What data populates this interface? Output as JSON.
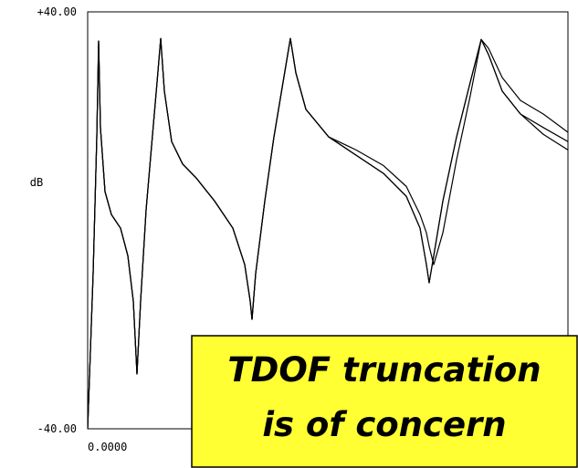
{
  "chart_data": {
    "type": "line",
    "ylabel": "dB",
    "annotation": [
      "TDOF truncation",
      "is of concern"
    ],
    "xlim": [
      0,
      526
    ],
    "xticks": [
      {
        "value": 0,
        "label": "0.0000"
      }
    ],
    "ylim": [
      -40,
      40
    ],
    "yticks": [
      {
        "value": -40,
        "label": "-40.00"
      },
      {
        "value": 40,
        "label": "+40.00"
      }
    ],
    "x": [
      0,
      6,
      10,
      12,
      14,
      19,
      26,
      36,
      44,
      50,
      54,
      58,
      64,
      70,
      76,
      80,
      84,
      92,
      104,
      119,
      139,
      159,
      172,
      178,
      180,
      184,
      194,
      204,
      214,
      222,
      228,
      239,
      264,
      294,
      324,
      349,
      364,
      371,
      374,
      379,
      389,
      404,
      419,
      431,
      439,
      454,
      474,
      499,
      526
    ],
    "series": [
      {
        "color": "#000000",
        "values": [
          -40,
          -10.2,
          16,
          34.4,
          17.8,
          5.5,
          1.1,
          -1.5,
          -6.8,
          -15.5,
          -29.5,
          -15.5,
          2,
          14.3,
          26.5,
          34.9,
          24.8,
          15.1,
          10.8,
          8.1,
          3.7,
          -1.5,
          -8.5,
          -15.5,
          -19,
          -10.2,
          3.7,
          16,
          26.5,
          34.9,
          28.3,
          21.3,
          16,
          12.5,
          9,
          4.6,
          -1.5,
          -8.5,
          -12,
          -6.8,
          3.7,
          16,
          26.5,
          34.7,
          31.8,
          24.8,
          20.4,
          17.8,
          15.1
        ]
      },
      {
        "color": "#000000",
        "values": [
          -40,
          -10.2,
          16,
          34.4,
          17.8,
          5.5,
          1.1,
          -1.5,
          -6.8,
          -15.5,
          -29.5,
          -15.5,
          2,
          14.3,
          26.5,
          34.9,
          24.8,
          15.1,
          10.8,
          8.1,
          3.7,
          -1.5,
          -8.5,
          -15.5,
          -19,
          -10.2,
          3.7,
          16,
          26.5,
          34.9,
          28.3,
          21.3,
          16,
          13.5,
          10.5,
          6.5,
          1.1,
          -2.4,
          -5,
          -8.5,
          -2.4,
          11.6,
          23.9,
          34.7,
          33,
          27.4,
          23,
          20.4,
          16.9
        ]
      },
      {
        "color": "#000000",
        "values": [
          -40,
          -10.2,
          16,
          34.4,
          17.8,
          5.5,
          1.1,
          -1.5,
          -6.8,
          -15.5,
          -29.5,
          -15.5,
          2,
          14.3,
          26.5,
          34.9,
          24.8,
          15.1,
          10.8,
          8.1,
          3.7,
          -1.5,
          -8.5,
          -15.5,
          -19,
          -10.2,
          3.7,
          16,
          26.5,
          34.9,
          28.3,
          21.3,
          16,
          12.5,
          9,
          4.6,
          -1.5,
          -8.5,
          -12,
          -6.8,
          3.7,
          16,
          26.5,
          34.7,
          31.8,
          24.8,
          20.4,
          16.5,
          13.5
        ]
      }
    ]
  }
}
